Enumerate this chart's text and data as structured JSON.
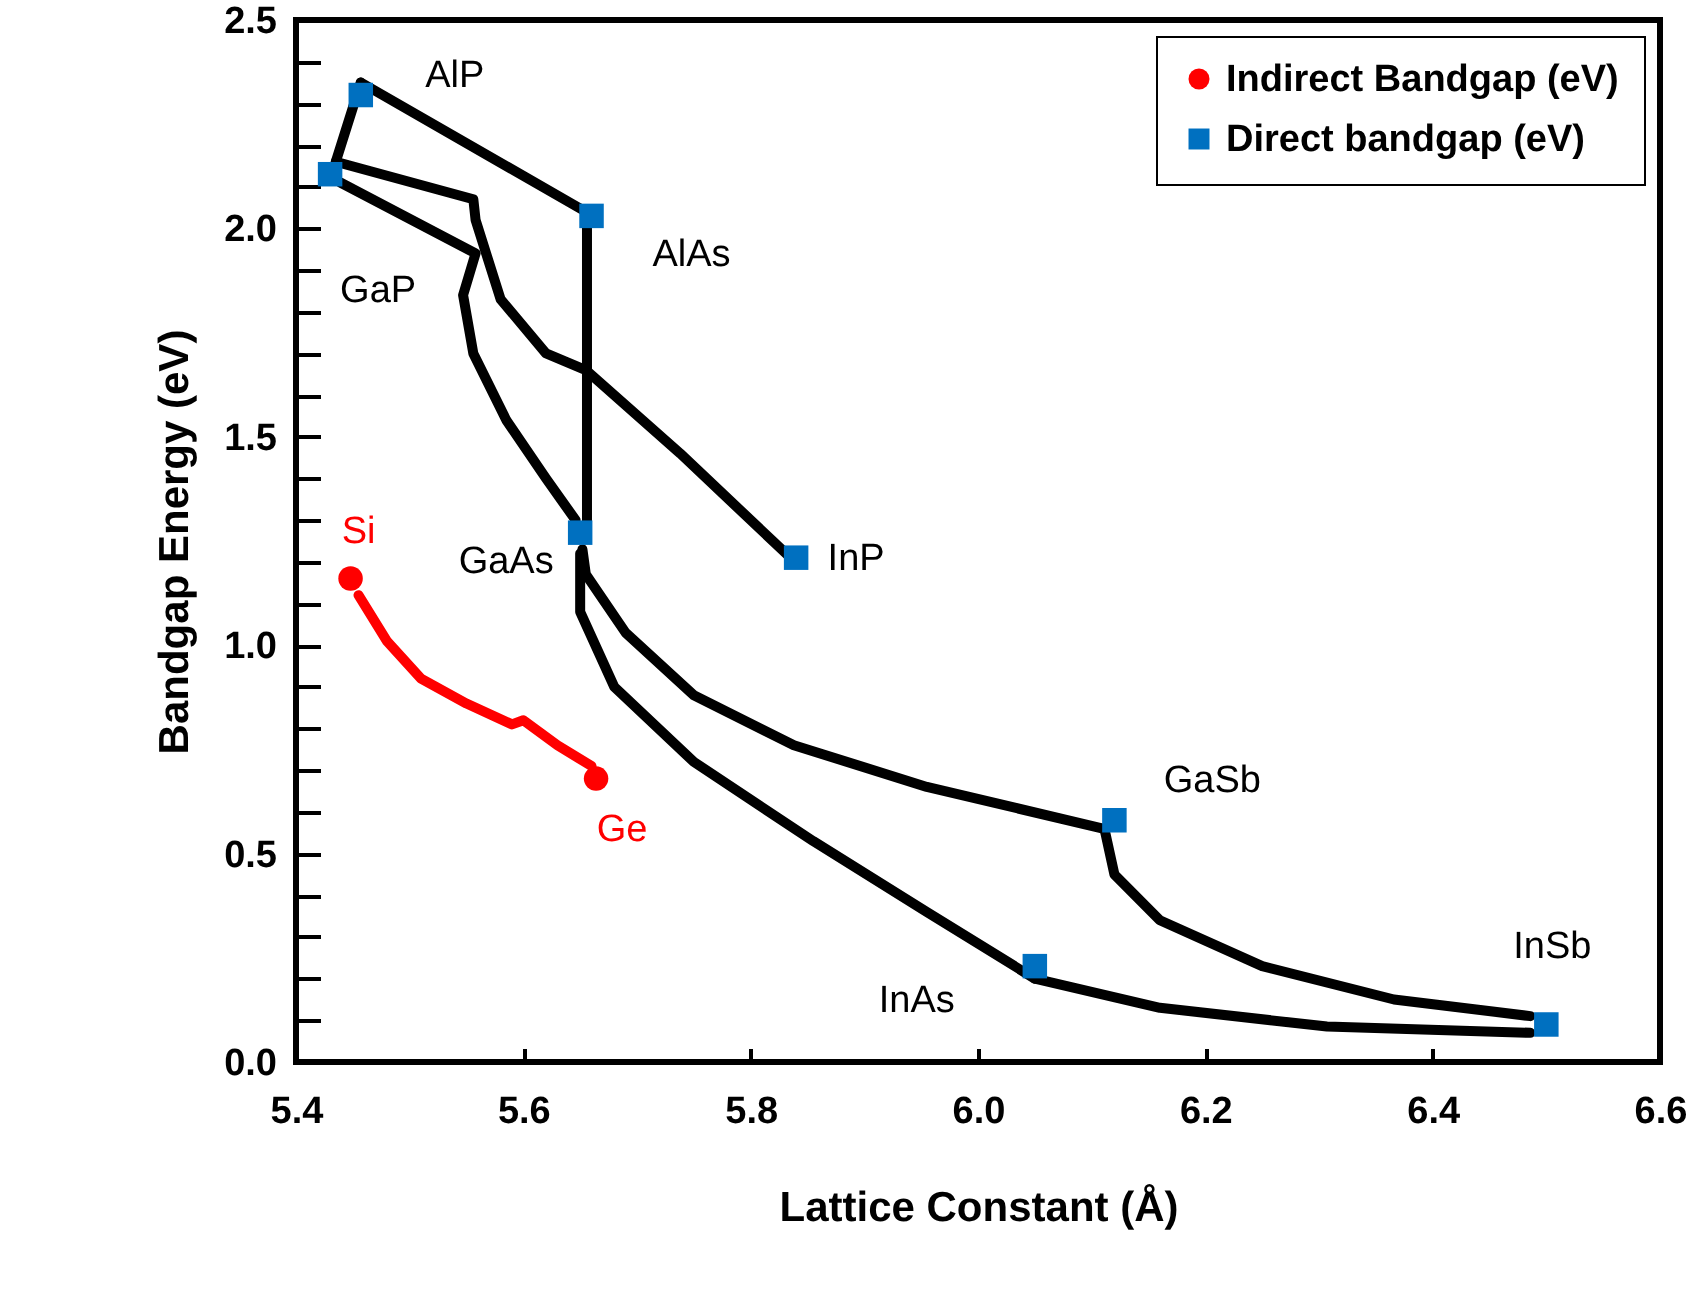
{
  "chart_data": {
    "type": "scatter",
    "xlabel": "Lattice Constant (Å)",
    "ylabel": "Bandgap Energy  (eV)",
    "xlim": [
      5.4,
      6.6
    ],
    "ylim": [
      0,
      2.5
    ],
    "xticks": [
      5.4,
      5.6,
      5.8,
      {
        "value": 6,
        "label": "6.0"
      },
      6.2,
      6.4,
      6.6
    ],
    "yticks": [
      {
        "value": 0,
        "label": "0.0"
      },
      {
        "value": 0.1,
        "label": null
      },
      {
        "value": 0.2,
        "label": null
      },
      {
        "value": 0.3,
        "label": null
      },
      {
        "value": 0.4,
        "label": null
      },
      0.5,
      {
        "value": 0.6,
        "label": null
      },
      {
        "value": 0.7,
        "label": null
      },
      {
        "value": 0.8,
        "label": null
      },
      {
        "value": 0.9,
        "label": null
      },
      {
        "value": 1,
        "label": "1.0"
      },
      {
        "value": 1.1,
        "label": null
      },
      {
        "value": 1.2,
        "label": null
      },
      {
        "value": 1.3,
        "label": null
      },
      {
        "value": 1.4,
        "label": null
      },
      1.5,
      {
        "value": 1.6,
        "label": null
      },
      {
        "value": 1.7,
        "label": null
      },
      {
        "value": 1.8,
        "label": null
      },
      {
        "value": 1.9,
        "label": null
      },
      {
        "value": 2,
        "label": "2.0"
      },
      {
        "value": 2.1,
        "label": null
      },
      {
        "value": 2.2,
        "label": null
      },
      {
        "value": 2.3,
        "label": null
      },
      {
        "value": 2.4,
        "label": null
      },
      2.5
    ],
    "grid": false,
    "legend": "top right",
    "series": [
      {
        "type": "line",
        "color": "#000000",
        "x": [
          5.457,
          5.435
        ],
        "values": [
          2.35,
          2.16
        ]
      },
      {
        "type": "line",
        "color": "#000000",
        "x": [
          5.457,
          5.655
        ],
        "values": [
          2.35,
          2.04
        ]
      },
      {
        "type": "line",
        "color": "#000000",
        "x": [
          5.656,
          5.656
        ],
        "values": [
          2.03,
          1.28
        ]
      },
      {
        "type": "line",
        "color": "#000000",
        "x": [
          5.435,
          5.556,
          5.558,
          5.58,
          5.62,
          5.655,
          5.738,
          5.835
        ],
        "values": [
          2.16,
          2.07,
          2.02,
          1.83,
          1.7,
          1.66,
          1.46,
          1.21
        ]
      },
      {
        "type": "line",
        "color": "#000000",
        "x": [
          5.439,
          5.558,
          5.547,
          5.556,
          5.585,
          5.62,
          5.646
        ],
        "values": [
          2.11,
          1.94,
          1.84,
          1.7,
          1.54,
          1.4,
          1.3
        ]
      },
      {
        "type": "line",
        "color": "#000000",
        "x": [
          5.652,
          5.655,
          5.69,
          5.75,
          5.838,
          5.955,
          6.11
        ],
        "values": [
          1.23,
          1.17,
          1.03,
          0.88,
          0.76,
          0.66,
          0.56
        ]
      },
      {
        "type": "line",
        "color": "#000000",
        "x": [
          5.65,
          5.65,
          5.68,
          5.75,
          5.855,
          5.955,
          6.05
        ],
        "values": [
          1.22,
          1.08,
          0.9,
          0.72,
          0.53,
          0.36,
          0.2
        ]
      },
      {
        "type": "line",
        "color": "#000000",
        "x": [
          6.05,
          6.16,
          6.307,
          6.486
        ],
        "values": [
          0.2,
          0.13,
          0.085,
          0.07
        ]
      },
      {
        "type": "line",
        "color": "#000000",
        "x": [
          6.112,
          6.12,
          6.16,
          6.25,
          6.366,
          6.486
        ],
        "values": [
          0.55,
          0.45,
          0.34,
          0.23,
          0.15,
          0.11
        ]
      },
      {
        "type": "line",
        "color": "#ff0000",
        "x": [
          5.455,
          5.48,
          5.51,
          5.55,
          5.59,
          5.6,
          5.63,
          5.66
        ],
        "values": [
          1.12,
          1.01,
          0.92,
          0.86,
          0.81,
          0.82,
          0.76,
          0.71
        ]
      },
      {
        "name": "Indirect Bandgap (eV)",
        "marker": "circle",
        "color": "#ff0000",
        "x": [
          5.448,
          5.664
        ],
        "values": [
          1.16,
          0.68
        ]
      },
      {
        "name": "Direct bandgap (eV)",
        "marker": "square",
        "color": "#0070c0",
        "x": [
          5.457,
          5.43,
          5.66,
          5.65,
          5.84,
          6.12,
          6.05,
          6.5
        ],
        "values": [
          2.32,
          2.13,
          2.03,
          1.27,
          1.21,
          0.58,
          0.23,
          0.09
        ]
      }
    ],
    "annotations": [
      {
        "text": "AlP",
        "x": 5.457,
        "y": 2.32
      },
      {
        "text": "GaP",
        "x": 5.43,
        "y": 2.13
      },
      {
        "text": "AlAs",
        "x": 5.66,
        "y": 2.03
      },
      {
        "text": "GaAs",
        "x": 5.65,
        "y": 1.27
      },
      {
        "text": "InP",
        "x": 5.84,
        "y": 1.21
      },
      {
        "text": "Si",
        "x": 5.448,
        "y": 1.16
      },
      {
        "text": "Ge",
        "x": 5.664,
        "y": 0.68
      },
      {
        "text": "GaSb",
        "x": 6.12,
        "y": 0.58
      },
      {
        "text": "InAs",
        "x": 6.05,
        "y": 0.23
      },
      {
        "text": "InSb",
        "x": 6.5,
        "y": 0.09
      }
    ]
  }
}
